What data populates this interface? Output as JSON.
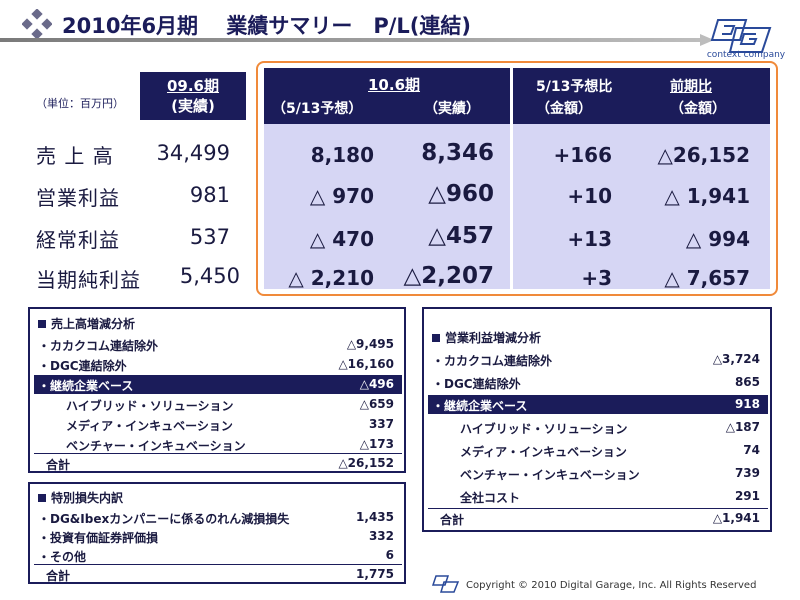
{
  "header": {
    "title": "2010年6月期　 業績サマリー　P/L(連結)",
    "logo_text": "context company",
    "brand_color": "#1b1c5a",
    "accent_color": "#f08a3a"
  },
  "units": "（単位：百万円）",
  "columns": {
    "prev_year": {
      "label": "09.6期",
      "sub": "(実績)"
    },
    "current": {
      "label": "10.6期",
      "forecast_sub": "（5/13予想）",
      "actual_sub": "（実績）"
    },
    "vs_forecast": {
      "label": "5/13予想比",
      "sub": "（金額）"
    },
    "vs_prev": {
      "label": "前期比",
      "sub": "（金額）"
    }
  },
  "pl_rows": [
    {
      "label": "売 上 高",
      "prev": "34,499",
      "forecast": "8,180",
      "actual": "8,346",
      "vs_forecast": "+166",
      "vs_prev": "△26,152"
    },
    {
      "label": "営業利益",
      "prev": "981",
      "forecast": "△ 970",
      "actual": "△960",
      "vs_forecast": "+10",
      "vs_prev": "△ 1,941"
    },
    {
      "label": "経常利益",
      "prev": "537",
      "forecast": "△ 470",
      "actual": "△457",
      "vs_forecast": "+13",
      "vs_prev": "△ 994"
    },
    {
      "label": "当期純利益",
      "prev": "5,450",
      "forecast": "△ 2,210",
      "actual": "△2,207",
      "vs_forecast": "+3",
      "vs_prev": "△ 7,657"
    }
  ],
  "sales_analysis": {
    "title": "売上高増減分析",
    "rows": [
      {
        "label": "・カカクコム連結除外",
        "value": "△9,495"
      },
      {
        "label": "・DGC連結除外",
        "value": "△16,160"
      },
      {
        "label": "・継続企業ベース",
        "value": "△496"
      },
      {
        "label": "ハイブリッド・ソリューション",
        "value": "△659"
      },
      {
        "label": "メディア・インキュベーション",
        "value": "337"
      },
      {
        "label": "ベンチャー・インキュベーション",
        "value": "△173"
      }
    ],
    "total_label": "合計",
    "total_value": "△26,152"
  },
  "special_loss": {
    "title": "特別損失内訳",
    "rows": [
      {
        "label": "・DG&Ibexカンパニーに係るのれん減損損失",
        "value": "1,435"
      },
      {
        "label": "・投資有価証券評価損",
        "value": "332"
      },
      {
        "label": "・その他",
        "value": "6"
      }
    ],
    "total_label": "合計",
    "total_value": "1,775"
  },
  "op_profit_analysis": {
    "title": "営業利益増減分析",
    "rows": [
      {
        "label": "・カカクコム連結除外",
        "value": "△3,724"
      },
      {
        "label": "・DGC連結除外",
        "value": "865"
      },
      {
        "label": "・継続企業ベース",
        "value": "918"
      },
      {
        "label": "ハイブリッド・ソリューション",
        "value": "△187"
      },
      {
        "label": "メディア・インキュベーション",
        "value": "74"
      },
      {
        "label": "ベンチャー・インキュベーション",
        "value": "739"
      },
      {
        "label": "全社コスト",
        "value": "291"
      }
    ],
    "total_label": "合計",
    "total_value": "△1,941"
  },
  "footer": {
    "copyright": "Copyright © 2010 Digital Garage, Inc. All Rights Reserved"
  }
}
